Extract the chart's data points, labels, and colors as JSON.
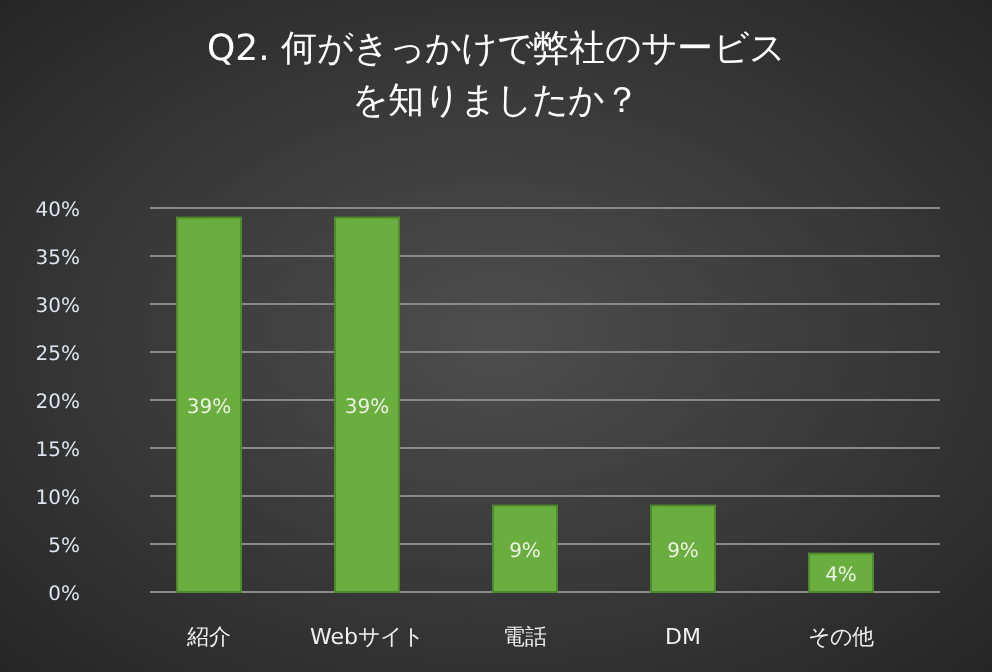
{
  "chart_data": {
    "type": "bar",
    "title": "Q2. 何がきっかけで弊社のサービスを知りましたか？",
    "categories": [
      "紹介",
      "Webサイト",
      "電話",
      "DM",
      "その他"
    ],
    "values": [
      39,
      39,
      9,
      9,
      4
    ],
    "value_labels": [
      "39%",
      "39%",
      "9%",
      "9%",
      "4%"
    ],
    "color": "#6aae40",
    "ylim": [
      0,
      40
    ],
    "yticks": [
      {
        "value": 0,
        "label": "0%"
      },
      {
        "value": 5,
        "label": "5%"
      },
      {
        "value": 10,
        "label": "10%"
      },
      {
        "value": 15,
        "label": "15%"
      },
      {
        "value": 20,
        "label": "20%"
      },
      {
        "value": 25,
        "label": "25%"
      },
      {
        "value": 30,
        "label": "30%"
      },
      {
        "value": 35,
        "label": "35%"
      },
      {
        "value": 40,
        "label": "40%"
      }
    ],
    "grid": "y"
  }
}
